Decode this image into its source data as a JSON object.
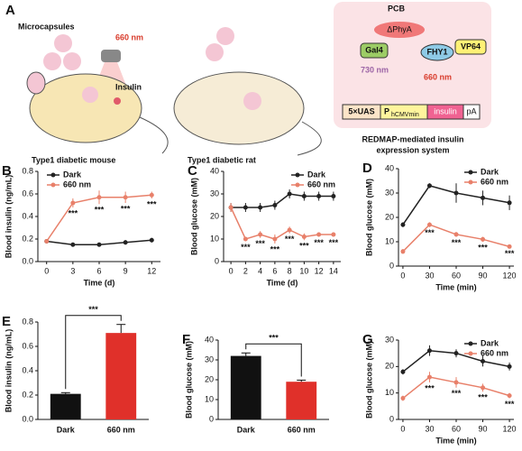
{
  "panel_a": {
    "panel": "A",
    "microcapsules": "Microcapsules",
    "light": "660 nm",
    "insulin": "Insulin",
    "mouse": "Type1 diabetic mouse",
    "rat": "Type1 diabetic rat",
    "pcb": "PCB",
    "phya": "ΔPhyA",
    "gal4": "Gal4",
    "fhy1": "FHY1",
    "vp64": "VP64",
    "far_red": "730 nm",
    "red": "660 nm",
    "uas": "5×UAS",
    "promoter": "P",
    "promoter_sub": "hCMVmin",
    "gene": "insulin",
    "pa": "pA",
    "system": "REDMAP-mediated insulin",
    "system2": "expression system"
  },
  "chart_data": [
    {
      "type": "line",
      "panel": "B",
      "xlabel": "Time (d)",
      "ylabel": "Blood insulin (ng/mL)",
      "x": [
        0,
        3,
        6,
        9,
        12
      ],
      "xlim": [
        -1,
        13
      ],
      "xticks": [
        0,
        3,
        6,
        9,
        12
      ],
      "ylim": [
        0,
        0.8
      ],
      "yticks": [
        {
          "value": 0,
          "label": "0.0"
        },
        0.2,
        0.4,
        0.6,
        0.8
      ],
      "legend": "upper left",
      "series": [
        {
          "name": "Dark",
          "color": "#222222",
          "values": [
            0.18,
            0.15,
            0.15,
            0.17,
            0.19
          ],
          "errors": [
            0.01,
            0.01,
            0.01,
            0.02,
            0.02
          ]
        },
        {
          "name": "660 nm",
          "color": "#e8806a",
          "values": [
            0.18,
            0.52,
            0.57,
            0.57,
            0.59
          ],
          "errors": [
            0.01,
            0.04,
            0.06,
            0.05,
            0.03
          ],
          "annotations": [
            null,
            "***",
            "***",
            "***",
            "***"
          ]
        }
      ]
    },
    {
      "type": "line",
      "panel": "C",
      "xlabel": "Time (d)",
      "ylabel": "Blood glucose (mM)",
      "x": [
        0,
        2,
        4,
        6,
        8,
        10,
        12,
        14
      ],
      "xlim": [
        -1,
        15
      ],
      "xticks": [
        0,
        2,
        4,
        6,
        8,
        10,
        12,
        14
      ],
      "ylim": [
        0,
        40
      ],
      "yticks": [
        0,
        10,
        20,
        30,
        40
      ],
      "legend": "upper right",
      "series": [
        {
          "name": "Dark",
          "color": "#222222",
          "values": [
            24,
            24,
            24,
            25,
            30,
            29,
            29,
            29
          ],
          "errors": [
            2,
            2,
            2,
            2,
            2,
            2,
            2,
            2
          ]
        },
        {
          "name": "660 nm",
          "color": "#e8806a",
          "values": [
            24,
            10,
            12,
            10,
            14,
            11,
            12,
            12
          ],
          "errors": [
            2,
            1,
            1.5,
            2,
            1.5,
            1.5,
            1,
            1
          ],
          "annotations": [
            null,
            "***",
            "***",
            "***",
            "***",
            "***",
            "***",
            "***"
          ]
        }
      ]
    },
    {
      "type": "line",
      "panel": "D",
      "xlabel": "Time (min)",
      "ylabel": "Blood glucose (mM)",
      "x": [
        0,
        30,
        60,
        90,
        120
      ],
      "xlim": [
        -5,
        125
      ],
      "xticks": [
        0,
        30,
        60,
        90,
        120
      ],
      "ylim": [
        0,
        40
      ],
      "yticks": [
        0,
        10,
        20,
        30,
        40
      ],
      "legend": "upper right",
      "series": [
        {
          "name": "Dark",
          "color": "#222222",
          "values": [
            17,
            33,
            30,
            28,
            26
          ],
          "errors": [
            1,
            1,
            4,
            3,
            3
          ]
        },
        {
          "name": "660 nm",
          "color": "#e8806a",
          "values": [
            6,
            17,
            13,
            11,
            8
          ],
          "errors": [
            1,
            1,
            1,
            1,
            0.5
          ],
          "annotations": [
            null,
            "***",
            "***",
            "***",
            "***"
          ]
        }
      ]
    },
    {
      "type": "bar",
      "panel": "E",
      "ylabel": "Blood insulin (ng/mL)",
      "categories": [
        "Dark",
        "660 nm"
      ],
      "values": [
        0.21,
        0.71
      ],
      "errors": [
        0.01,
        0.07
      ],
      "colors": [
        "#111111",
        "#e0302a"
      ],
      "ylim": [
        0,
        0.8
      ],
      "yticks": [
        {
          "value": 0,
          "label": "0.0"
        },
        0.2,
        0.4,
        0.6,
        0.8
      ],
      "annotation": "***"
    },
    {
      "type": "bar",
      "panel": "F",
      "ylabel": "Blood glucose (mM)",
      "categories": [
        "Dark",
        "660 nm"
      ],
      "values": [
        32,
        19
      ],
      "errors": [
        1.5,
        0.8
      ],
      "colors": [
        "#111111",
        "#e0302a"
      ],
      "ylim": [
        0,
        40
      ],
      "yticks": [
        0,
        10,
        20,
        30,
        40
      ],
      "annotation": "***"
    },
    {
      "type": "line",
      "panel": "G",
      "xlabel": "Time (min)",
      "ylabel": "Blood glucose (mM)",
      "x": [
        0,
        30,
        60,
        90,
        120
      ],
      "xlim": [
        -5,
        125
      ],
      "xticks": [
        0,
        30,
        60,
        90,
        120
      ],
      "ylim": [
        0,
        30
      ],
      "yticks": [
        0,
        10,
        20,
        30
      ],
      "legend": "upper right",
      "series": [
        {
          "name": "Dark",
          "color": "#222222",
          "values": [
            18,
            26,
            25,
            22,
            20
          ],
          "errors": [
            1,
            2,
            1.5,
            2,
            1.5
          ]
        },
        {
          "name": "660 nm",
          "color": "#e8806a",
          "values": [
            8,
            16,
            14,
            12,
            9
          ],
          "errors": [
            1,
            2,
            2,
            1.5,
            1
          ],
          "annotations": [
            null,
            "***",
            "***",
            "***",
            "***"
          ]
        }
      ]
    }
  ]
}
